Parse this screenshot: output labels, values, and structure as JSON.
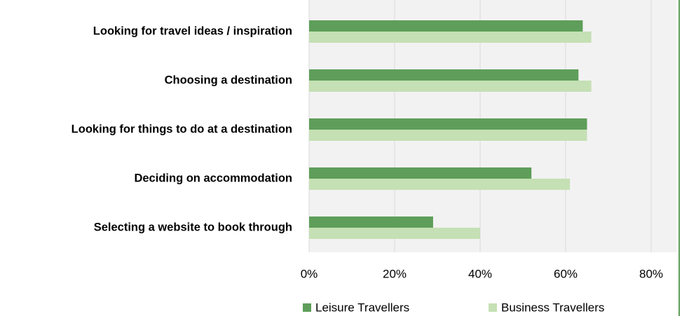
{
  "chart_data": {
    "type": "bar",
    "orientation": "horizontal",
    "categories": [
      "Looking for travel ideas / inspiration",
      "Choosing a destination",
      "Looking for things to do at a destination",
      "Deciding on accommodation",
      "Selecting a website to book through"
    ],
    "series": [
      {
        "name": "Leisure Travellers",
        "color": "#5e9e5a",
        "values": [
          64,
          63,
          65,
          52,
          29
        ]
      },
      {
        "name": "Business Travellers",
        "color": "#c5e0b4",
        "values": [
          66,
          66,
          65,
          61,
          40
        ]
      }
    ],
    "xlim": [
      0,
      80
    ],
    "xticks": [
      {
        "value": 0,
        "label": "0%"
      },
      {
        "value": 20,
        "label": "20%"
      },
      {
        "value": 40,
        "label": "40%"
      },
      {
        "value": 60,
        "label": "60%"
      },
      {
        "value": 80,
        "label": "80%"
      }
    ],
    "grid": true,
    "legend": "bottom"
  }
}
